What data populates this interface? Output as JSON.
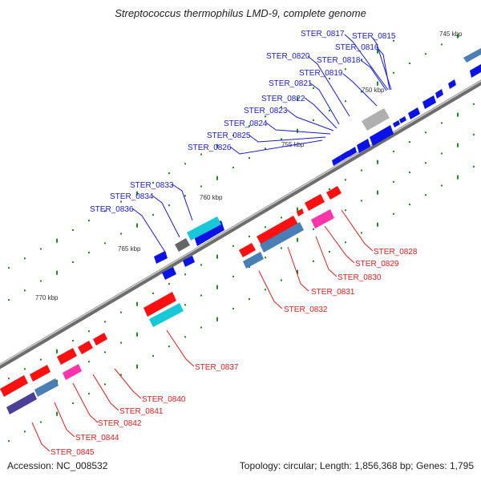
{
  "title": "Streptococcus thermophilus LMD-9, complete genome",
  "footer": {
    "accession": "Accession: NC_008532",
    "topology": "Topology: circular; Length: 1,856,368 bp; Genes: 1,795"
  },
  "scale_labels": [
    "745 kbp",
    "750 kbp",
    "755 kbp",
    "760 kbp",
    "765 kbp",
    "770 kbp"
  ],
  "gene_labels_blue": [
    "STER_0815",
    "STER_0816",
    "STER_0817",
    "STER_0818",
    "STER_0819",
    "STER_0820",
    "STER_0821",
    "STER_0822",
    "STER_0823",
    "STER_0824",
    "STER_0825",
    "STER_0826",
    "STER_0833",
    "STER_0834",
    "STER_0836"
  ],
  "gene_labels_red": [
    "STER_0828",
    "STER_0829",
    "STER_0830",
    "STER_0831",
    "STER_0832",
    "STER_0837",
    "STER_0840",
    "STER_0841",
    "STER_0842",
    "STER_0844",
    "STER_0845"
  ],
  "colors": {
    "blue_gene": "#0a12e6",
    "red_gene": "#ff1010",
    "cyan_gene": "#18c8d8",
    "steel_gene": "#4a7fb5",
    "pink_gene": "#ff33aa",
    "gray_gene": "#b0b0b0",
    "dark_gray_gene": "#666666",
    "purple_gene": "#4a3f99",
    "backbone": "#888888",
    "tick": "#1e8a1e",
    "blue_label": "#1a1ad6",
    "red_label": "#e11b1b"
  }
}
